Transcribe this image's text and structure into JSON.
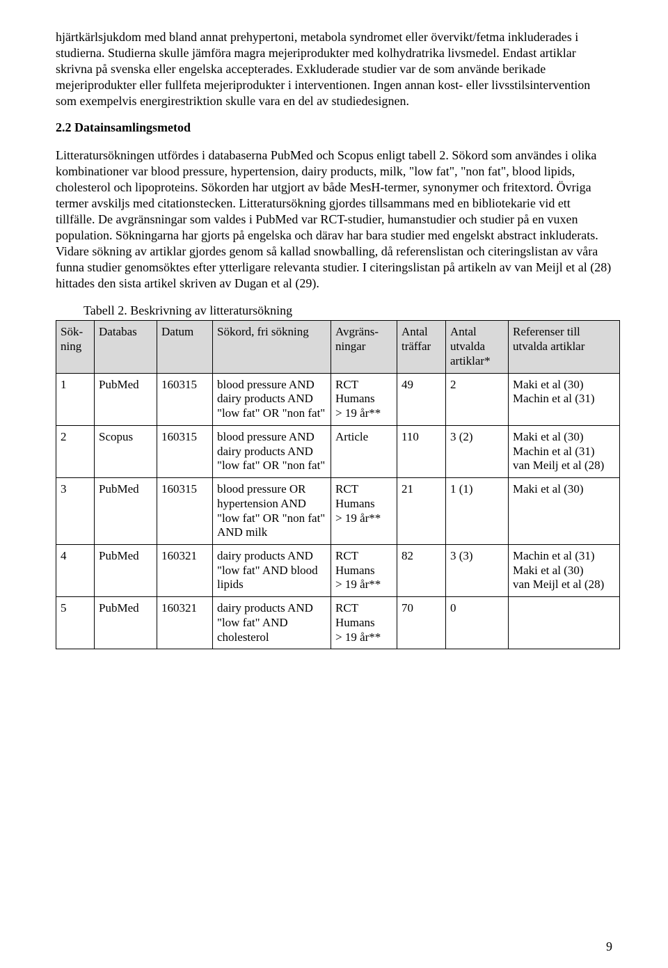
{
  "paragraphs": {
    "p1": "hjärtkärlsjukdom med bland annat prehypertoni, metabola syndromet eller övervikt/fetma inkluderades i studierna. Studierna skulle jämföra magra mejeriprodukter med kolhydratrika livsmedel. Endast artiklar skrivna på svenska eller engelska accepterades. Exkluderade studier var de som använde berikade mejeriprodukter eller fullfeta mejeriprodukter i interventionen. Ingen annan kost- eller livsstilsintervention som exempelvis energirestriktion skulle vara en del av studiedesignen.",
    "heading": "2.2 Datainsamlingsmetod",
    "p2": "Litteratursökningen utfördes i databaserna PubMed och Scopus enligt tabell 2. Sökord som användes i olika kombinationer var blood pressure, hypertension, dairy products, milk, \"low fat\", \"non fat\", blood lipids, cholesterol och lipoproteins. Sökorden har utgjort av både MesH-termer, synonymer och fritextord. Övriga termer avskiljs med citationstecken. Litteratursökning gjordes tillsammans med en bibliotekarie vid ett tillfälle. De avgränsningar som valdes i PubMed var RCT-studier, humanstudier och studier på en vuxen population. Sökningarna har gjorts på engelska och därav har bara studier med engelskt abstract inkluderats. Vidare sökning av artiklar gjordes genom så kallad snowballing, då referenslistan och citeringslistan av våra funna studier genomsöktes efter ytterligare relevanta studier. I citeringslistan på artikeln av van Meijl et al (28) hittades den sista artikel skriven av Dugan et al (29)."
  },
  "table": {
    "caption": "Tabell 2. Beskrivning av litteratursökning",
    "headers": [
      "Sök-ning",
      "Databas",
      "Datum",
      "Sökord, fri sökning",
      "Avgräns-ningar",
      "Antal träffar",
      "Antal utvalda artiklar*",
      "Referenser till utvalda artiklar"
    ],
    "rows": [
      {
        "num": "1",
        "db": "PubMed",
        "date": "160315",
        "query": "blood pressure AND dairy products AND \"low fat\" OR \"non fat\"",
        "limits": "RCT\nHumans\n> 19 år**",
        "hits": "49",
        "selected": "2",
        "refs": "Maki et al (30)\nMachin et al (31)"
      },
      {
        "num": "2",
        "db": "Scopus",
        "date": "160315",
        "query": "blood pressure AND dairy products AND \"low fat\" OR \"non fat\"",
        "limits": "Article",
        "hits": "110",
        "selected": "3 (2)",
        "refs": "Maki et al (30)\nMachin et al (31)\nvan Meilj et al (28)"
      },
      {
        "num": "3",
        "db": "PubMed",
        "date": "160315",
        "query": "blood pressure OR hypertension AND \"low fat\" OR \"non fat\" AND milk",
        "limits": "RCT\nHumans\n> 19 år**",
        "hits": "21",
        "selected": "1 (1)",
        "refs": "Maki et al (30)"
      },
      {
        "num": "4",
        "db": "PubMed",
        "date": "160321",
        "query": "dairy products AND \"low fat\" AND blood lipids",
        "limits": "RCT\nHumans\n> 19 år**",
        "hits": "82",
        "selected": "3 (3)",
        "refs": "Machin et al (31)\nMaki et al (30)\nvan Meijl et al (28)"
      },
      {
        "num": "5",
        "db": "PubMed",
        "date": "160321",
        "query": "dairy products AND \"low fat\" AND cholesterol",
        "limits": "RCT\nHumans\n> 19 år**",
        "hits": "70",
        "selected": "0",
        "refs": ""
      }
    ]
  },
  "page_number": "9"
}
